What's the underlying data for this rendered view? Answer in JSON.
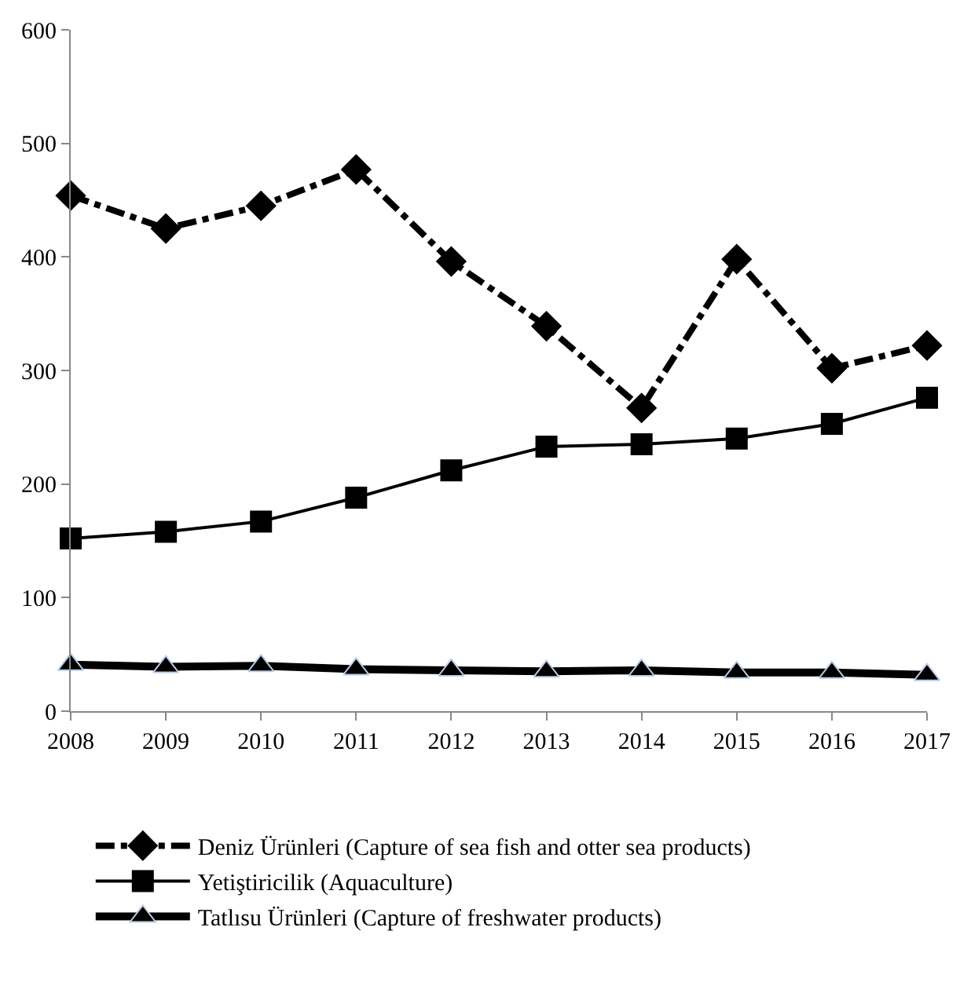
{
  "chart_data": {
    "type": "line",
    "categories": [
      "2008",
      "2009",
      "2010",
      "2011",
      "2012",
      "2013",
      "2014",
      "2015",
      "2016",
      "2017"
    ],
    "ylim": [
      0,
      600
    ],
    "yticks": [
      0,
      100,
      200,
      300,
      400,
      500,
      600
    ],
    "legend": "bottom",
    "series": [
      {
        "name": "Deniz Ürünleri (Capture of sea fish and otter sea products)",
        "color": "#000000",
        "marker": "diamond",
        "line_style": "dashed",
        "values": [
          454,
          425,
          445,
          477,
          396,
          339,
          267,
          398,
          302,
          322
        ]
      },
      {
        "name": "Yetiştiricilik (Aquaculture)",
        "color": "#000000",
        "marker": "square",
        "line_style": "solid",
        "values": [
          152,
          158,
          167,
          188,
          212,
          233,
          235,
          240,
          253,
          276
        ]
      },
      {
        "name": "Tatlısu Ürünleri (Capture of freshwater products)",
        "color": "#000000",
        "marker": "triangle",
        "line_style": "solid",
        "values": [
          41,
          39,
          40,
          37,
          36,
          35,
          36,
          34,
          34,
          32
        ]
      }
    ]
  }
}
